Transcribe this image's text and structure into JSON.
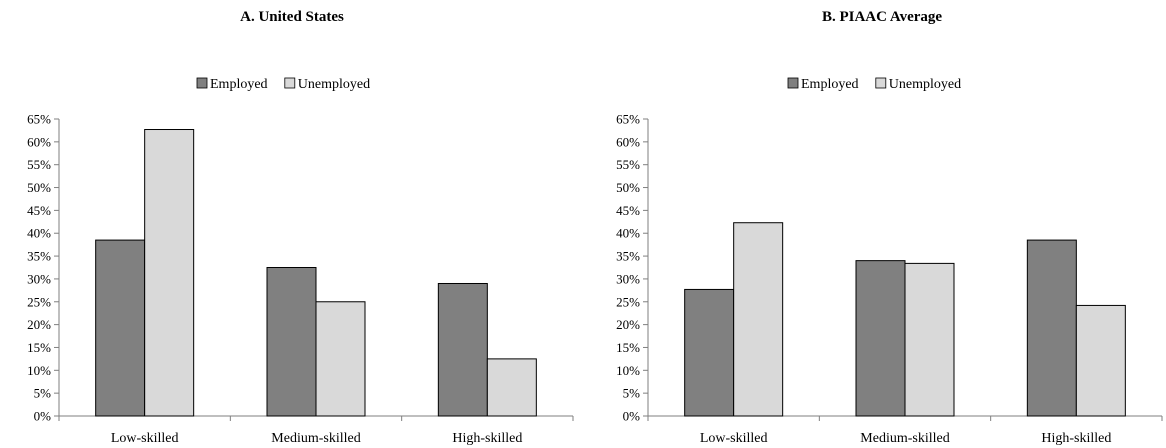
{
  "chart_data": [
    {
      "type": "bar",
      "title": "A. United States",
      "categories": [
        "Low-skilled",
        "Medium-skilled",
        "High-skilled"
      ],
      "series": [
        {
          "name": "Employed",
          "values": [
            38.5,
            32.5,
            29.0
          ]
        },
        {
          "name": "Unemployed",
          "values": [
            62.7,
            25.0,
            12.5
          ]
        }
      ],
      "y_ticks": [
        "0%",
        "5%",
        "10%",
        "15%",
        "20%",
        "25%",
        "30%",
        "35%",
        "40%",
        "45%",
        "50%",
        "55%",
        "60%",
        "65%"
      ],
      "ylim": [
        0,
        65
      ],
      "ytick_step": 5,
      "legend_position": "top",
      "grid": false
    },
    {
      "type": "bar",
      "title": "B. PIAAC Average",
      "categories": [
        "Low-skilled",
        "Medium-skilled",
        "High-skilled"
      ],
      "series": [
        {
          "name": "Employed",
          "values": [
            27.7,
            34.0,
            38.5
          ]
        },
        {
          "name": "Unemployed",
          "values": [
            42.3,
            33.4,
            24.2
          ]
        }
      ],
      "y_ticks": [
        "0%",
        "5%",
        "10%",
        "15%",
        "20%",
        "25%",
        "30%",
        "35%",
        "40%",
        "45%",
        "50%",
        "55%",
        "60%",
        "65%"
      ],
      "ylim": [
        0,
        65
      ],
      "ytick_step": 5,
      "legend_position": "top",
      "grid": false
    }
  ],
  "colors": {
    "Employed": "#808080",
    "Unemployed": "#d9d9d9",
    "axis": "#7f7f7f",
    "bar_stroke": "#000000"
  }
}
